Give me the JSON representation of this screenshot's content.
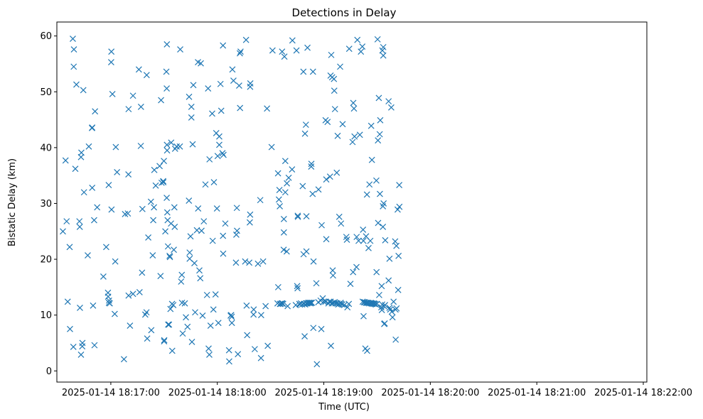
{
  "chart_data": {
    "type": "scatter",
    "title": "Detections in Delay",
    "xlabel": "Time (UTC)",
    "ylabel": "Bistatic Delay (km)",
    "marker": "x",
    "color": "#1f77b4",
    "grid": false,
    "x_ticks": [
      "2025-01-14 18:17:00",
      "2025-01-14 18:18:00",
      "2025-01-14 18:19:00",
      "2025-01-14 18:20:00",
      "2025-01-14 18:21:00",
      "2025-01-14 18:22:00"
    ],
    "x_tick_seconds": [
      60,
      120,
      180,
      240,
      300,
      360
    ],
    "xlim_seconds": [
      29.6,
      362.0
    ],
    "y_ticks": [
      "0",
      "10",
      "20",
      "30",
      "40",
      "50",
      "60"
    ],
    "y_tick_values": [
      0,
      10,
      20,
      30,
      40,
      50,
      60
    ],
    "ylim": [
      -2,
      62.5
    ],
    "x_reference": "2025-01-14 18:16:00",
    "points": [
      [
        33.0,
        25.0
      ],
      [
        35.1,
        26.8
      ],
      [
        34.5,
        37.7
      ],
      [
        35.7,
        12.4
      ],
      [
        36.8,
        22.2
      ],
      [
        37.0,
        7.5
      ],
      [
        38.6,
        59.5
      ],
      [
        38.9,
        4.3
      ],
      [
        39.2,
        57.6
      ],
      [
        39.1,
        54.5
      ],
      [
        40.0,
        36.2
      ],
      [
        40.6,
        51.3
      ],
      [
        42.3,
        26.8
      ],
      [
        42.5,
        25.8
      ],
      [
        42.6,
        11.3
      ],
      [
        43.2,
        38.3
      ],
      [
        43.4,
        39.1
      ],
      [
        43.2,
        2.9
      ],
      [
        44.0,
        5.0
      ],
      [
        43.9,
        4.4
      ],
      [
        44.5,
        50.3
      ],
      [
        44.9,
        32.0
      ],
      [
        47.0,
        20.7
      ],
      [
        47.6,
        40.2
      ],
      [
        49.5,
        32.8
      ],
      [
        49.4,
        43.5
      ],
      [
        49.5,
        43.6
      ],
      [
        50.0,
        11.7
      ],
      [
        50.6,
        27.0
      ],
      [
        50.8,
        4.6
      ],
      [
        51.1,
        46.5
      ],
      [
        52.3,
        29.3
      ],
      [
        55.8,
        16.9
      ],
      [
        57.4,
        22.2
      ],
      [
        58.4,
        14.0
      ],
      [
        58.5,
        13.3
      ],
      [
        58.8,
        33.3
      ],
      [
        58.9,
        12.2
      ],
      [
        59.0,
        12.6
      ],
      [
        59.4,
        12.1
      ],
      [
        60.3,
        57.2
      ],
      [
        60.2,
        55.3
      ],
      [
        60.4,
        28.9
      ],
      [
        60.9,
        49.6
      ],
      [
        62.2,
        10.2
      ],
      [
        62.5,
        19.6
      ],
      [
        62.8,
        40.1
      ],
      [
        63.5,
        35.6
      ],
      [
        67.4,
        2.1
      ],
      [
        68.0,
        28.1
      ],
      [
        69.6,
        28.2
      ],
      [
        69.9,
        35.2
      ],
      [
        70.0,
        13.5
      ],
      [
        70.0,
        46.9
      ],
      [
        70.8,
        8.1
      ],
      [
        72.5,
        49.3
      ],
      [
        72.5,
        13.8
      ],
      [
        75.8,
        54.0
      ],
      [
        76.2,
        14.1
      ],
      [
        77.0,
        47.3
      ],
      [
        76.9,
        40.3
      ],
      [
        77.6,
        17.6
      ],
      [
        77.8,
        29.0
      ],
      [
        79.4,
        10.1
      ],
      [
        80.2,
        53.0
      ],
      [
        80.5,
        5.8
      ],
      [
        80.1,
        10.5
      ],
      [
        81.1,
        23.9
      ],
      [
        82.8,
        7.3
      ],
      [
        82.6,
        30.3
      ],
      [
        83.6,
        20.7
      ],
      [
        83.9,
        27.0
      ],
      [
        84.3,
        29.3
      ],
      [
        84.5,
        36.0
      ],
      [
        85.3,
        33.2
      ],
      [
        87.5,
        36.7
      ],
      [
        88.0,
        17.0
      ],
      [
        88.3,
        48.5
      ],
      [
        88.6,
        33.7
      ],
      [
        89.5,
        34.0
      ],
      [
        89.6,
        33.8
      ],
      [
        89.9,
        37.6
      ],
      [
        90.1,
        5.5
      ],
      [
        90.0,
        5.3
      ],
      [
        90.7,
        25.0
      ],
      [
        91.3,
        53.6
      ],
      [
        91.5,
        50.6
      ],
      [
        91.6,
        58.5
      ],
      [
        91.6,
        40.5
      ],
      [
        91.7,
        39.5
      ],
      [
        91.5,
        31.0
      ],
      [
        91.8,
        28.4
      ],
      [
        92.0,
        27.0
      ],
      [
        92.2,
        22.3
      ],
      [
        92.3,
        8.3
      ],
      [
        92.8,
        8.3
      ],
      [
        93.1,
        20.6
      ],
      [
        93.3,
        20.4
      ],
      [
        93.6,
        11.1
      ],
      [
        93.9,
        26.4
      ],
      [
        94.0,
        40.9
      ],
      [
        94.5,
        12.0
      ],
      [
        94.6,
        3.6
      ],
      [
        95.2,
        11.8
      ],
      [
        95.5,
        21.7
      ],
      [
        95.8,
        29.3
      ],
      [
        96.0,
        25.8
      ],
      [
        96.2,
        39.8
      ],
      [
        97.1,
        40.2
      ],
      [
        98.9,
        40.2
      ],
      [
        99.1,
        57.6
      ],
      [
        99.6,
        16.0
      ],
      [
        100.0,
        17.2
      ],
      [
        100.1,
        12.2
      ],
      [
        100.5,
        6.7
      ],
      [
        101.7,
        12.1
      ],
      [
        102.3,
        9.6
      ],
      [
        103.2,
        7.9
      ],
      [
        104.0,
        30.5
      ],
      [
        104.1,
        49.1
      ],
      [
        104.4,
        21.2
      ],
      [
        104.4,
        20.1
      ],
      [
        104.9,
        24.1
      ],
      [
        105.4,
        47.3
      ],
      [
        105.4,
        45.4
      ],
      [
        105.7,
        5.2
      ],
      [
        106.1,
        40.6
      ],
      [
        106.5,
        51.2
      ],
      [
        107.5,
        10.5
      ],
      [
        107.1,
        19.3
      ],
      [
        108.5,
        25.2
      ],
      [
        109.1,
        55.3
      ],
      [
        109.2,
        29.1
      ],
      [
        109.9,
        18.0
      ],
      [
        110.4,
        16.6
      ],
      [
        110.7,
        55.1
      ],
      [
        111.1,
        25.1
      ],
      [
        111.7,
        9.9
      ],
      [
        112.4,
        26.8
      ],
      [
        113.3,
        33.4
      ],
      [
        114.2,
        13.6
      ],
      [
        114.8,
        50.6
      ],
      [
        115.1,
        4.0
      ],
      [
        115.5,
        2.9
      ],
      [
        115.6,
        37.9
      ],
      [
        116.2,
        8.1
      ],
      [
        117.4,
        23.3
      ],
      [
        117.1,
        46.1
      ],
      [
        117.8,
        11.0
      ],
      [
        118.1,
        33.8
      ],
      [
        119.0,
        13.7
      ],
      [
        119.4,
        42.6
      ],
      [
        119.8,
        29.1
      ],
      [
        120.2,
        38.5
      ],
      [
        120.6,
        8.6
      ],
      [
        121.1,
        40.5
      ],
      [
        121.1,
        42.0
      ],
      [
        121.8,
        51.4
      ],
      [
        122.2,
        46.6
      ],
      [
        122.9,
        39.0
      ],
      [
        123.5,
        38.7
      ],
      [
        123.2,
        58.3
      ],
      [
        123.2,
        24.2
      ],
      [
        123.3,
        21.0
      ],
      [
        124.5,
        26.4
      ],
      [
        126.7,
        1.7
      ],
      [
        126.6,
        3.7
      ],
      [
        127.5,
        9.9
      ],
      [
        127.8,
        10.0
      ],
      [
        128.2,
        8.6
      ],
      [
        128.5,
        54.0
      ],
      [
        128.1,
        9.7
      ],
      [
        129.1,
        52.0
      ],
      [
        130.7,
        24.4
      ],
      [
        131.1,
        25.1
      ],
      [
        130.5,
        19.4
      ],
      [
        131.0,
        29.2
      ],
      [
        131.6,
        3.0
      ],
      [
        132.3,
        51.1
      ],
      [
        132.7,
        56.9
      ],
      [
        133.1,
        57.2
      ],
      [
        132.8,
        47.1
      ],
      [
        136.2,
        59.3
      ],
      [
        136.8,
        6.4
      ],
      [
        136.5,
        11.7
      ],
      [
        138.0,
        19.4
      ],
      [
        135.7,
        19.6
      ],
      [
        138.3,
        26.6
      ],
      [
        138.5,
        28.0
      ],
      [
        138.6,
        51.5
      ],
      [
        138.5,
        50.9
      ],
      [
        140.4,
        10.1
      ],
      [
        140.5,
        11.0
      ],
      [
        141.1,
        3.9
      ],
      [
        142.9,
        19.2
      ],
      [
        144.2,
        30.6
      ],
      [
        144.6,
        2.3
      ],
      [
        144.7,
        10.0
      ],
      [
        145.8,
        19.6
      ],
      [
        147.2,
        11.6
      ],
      [
        148.0,
        47.0
      ],
      [
        148.4,
        4.5
      ],
      [
        150.6,
        40.1
      ],
      [
        151.1,
        57.4
      ],
      [
        154.2,
        35.4
      ],
      [
        153.9,
        12.1
      ],
      [
        154.3,
        15.0
      ],
      [
        154.7,
        30.7
      ],
      [
        155.0,
        32.4
      ],
      [
        155.2,
        29.5
      ],
      [
        155.3,
        12.0
      ],
      [
        155.6,
        12.0
      ],
      [
        156.3,
        12.1
      ],
      [
        156.5,
        57.2
      ],
      [
        156.6,
        12.1
      ],
      [
        157.1,
        12.0
      ],
      [
        157.4,
        21.7
      ],
      [
        157.5,
        24.8
      ],
      [
        157.5,
        27.2
      ],
      [
        157.8,
        56.3
      ],
      [
        158.3,
        37.6
      ],
      [
        158.3,
        32.0
      ],
      [
        159.1,
        21.4
      ],
      [
        159.2,
        33.6
      ],
      [
        159.6,
        11.6
      ],
      [
        160.2,
        34.6
      ],
      [
        162.3,
        59.2
      ],
      [
        162.1,
        36.1
      ],
      [
        164.2,
        11.8
      ],
      [
        164.6,
        57.4
      ],
      [
        165.0,
        15.2
      ],
      [
        165.2,
        14.8
      ],
      [
        165.3,
        27.8
      ],
      [
        165.4,
        27.6
      ],
      [
        166.2,
        12.0
      ],
      [
        166.5,
        11.9
      ],
      [
        167.1,
        12.1
      ],
      [
        167.8,
        11.9
      ],
      [
        168.1,
        33.1
      ],
      [
        168.5,
        53.6
      ],
      [
        168.6,
        20.9
      ],
      [
        168.8,
        12.0
      ],
      [
        169.2,
        6.2
      ],
      [
        169.4,
        42.5
      ],
      [
        169.5,
        11.9
      ],
      [
        169.9,
        44.1
      ],
      [
        170.2,
        21.4
      ],
      [
        170.2,
        27.7
      ],
      [
        170.3,
        12.1
      ],
      [
        170.8,
        57.9
      ],
      [
        170.7,
        12.1
      ],
      [
        171.2,
        12.2
      ],
      [
        171.7,
        12.2
      ],
      [
        172.3,
        12.2
      ],
      [
        172.5,
        12.1
      ],
      [
        172.9,
        36.6
      ],
      [
        172.9,
        12.2
      ],
      [
        173.0,
        37.1
      ],
      [
        173.3,
        12.2
      ],
      [
        173.7,
        31.7
      ],
      [
        173.9,
        53.6
      ],
      [
        174.1,
        7.7
      ],
      [
        174.2,
        19.6
      ],
      [
        175.8,
        15.7
      ],
      [
        176.1,
        1.2
      ],
      [
        176.9,
        12.3
      ],
      [
        177.0,
        32.5
      ],
      [
        178.2,
        12.6
      ],
      [
        178.6,
        7.5
      ],
      [
        178.8,
        26.1
      ],
      [
        179.4,
        13.0
      ],
      [
        179.9,
        12.4
      ],
      [
        180.9,
        12.4
      ],
      [
        181.4,
        34.3
      ],
      [
        181.0,
        44.9
      ],
      [
        181.4,
        23.6
      ],
      [
        182.1,
        44.6
      ],
      [
        182.6,
        12.1
      ],
      [
        183.1,
        12.4
      ],
      [
        183.5,
        34.8
      ],
      [
        183.9,
        12.4
      ],
      [
        184.2,
        56.6
      ],
      [
        183.8,
        52.9
      ],
      [
        184.0,
        4.5
      ],
      [
        184.5,
        12.1
      ],
      [
        184.7,
        52.6
      ],
      [
        185.0,
        18.0
      ],
      [
        185.2,
        17.1
      ],
      [
        185.3,
        12.2
      ],
      [
        185.7,
        52.3
      ],
      [
        185.9,
        50.2
      ],
      [
        186.1,
        12.3
      ],
      [
        186.3,
        46.9
      ],
      [
        186.6,
        12.1
      ],
      [
        187.3,
        35.5
      ],
      [
        187.6,
        12.1
      ],
      [
        187.8,
        42.1
      ],
      [
        188.1,
        11.9
      ],
      [
        188.6,
        12.0
      ],
      [
        188.7,
        27.6
      ],
      [
        189.2,
        54.5
      ],
      [
        189.5,
        12.2
      ],
      [
        189.7,
        26.4
      ],
      [
        189.8,
        12.0
      ],
      [
        190.4,
        11.9
      ],
      [
        190.6,
        44.2
      ],
      [
        191.5,
        11.8
      ],
      [
        192.7,
        24.0
      ],
      [
        193.0,
        23.5
      ],
      [
        193.3,
        11.4
      ],
      [
        194.3,
        57.7
      ],
      [
        194.1,
        12.0
      ],
      [
        195.0,
        15.6
      ],
      [
        196.2,
        41.0
      ],
      [
        196.5,
        17.7
      ],
      [
        196.6,
        48.0
      ],
      [
        197.0,
        47.0
      ],
      [
        197.3,
        42.0
      ],
      [
        198.4,
        18.6
      ],
      [
        198.5,
        24.0
      ],
      [
        198.9,
        59.3
      ],
      [
        199.6,
        23.3
      ],
      [
        200.3,
        42.3
      ],
      [
        200.9,
        57.2
      ],
      [
        201.7,
        58.1
      ],
      [
        201.9,
        12.4
      ],
      [
        202.3,
        23.3
      ],
      [
        202.1,
        25.3
      ],
      [
        202.4,
        9.8
      ],
      [
        202.6,
        12.3
      ],
      [
        203.1,
        12.3
      ],
      [
        203.4,
        4.0
      ],
      [
        203.7,
        12.2
      ],
      [
        203.8,
        24.1
      ],
      [
        204.1,
        12.2
      ],
      [
        204.3,
        31.6
      ],
      [
        204.4,
        3.6
      ],
      [
        204.6,
        12.2
      ],
      [
        205.1,
        12.2
      ],
      [
        205.2,
        22.0
      ],
      [
        205.6,
        12.1
      ],
      [
        205.7,
        33.4
      ],
      [
        206.2,
        23.3
      ],
      [
        206.4,
        12.2
      ],
      [
        206.6,
        12.1
      ],
      [
        206.7,
        43.9
      ],
      [
        207.1,
        12.1
      ],
      [
        207.1,
        37.8
      ],
      [
        207.5,
        12.0
      ],
      [
        208.1,
        12.1
      ],
      [
        208.5,
        12.0
      ],
      [
        208.8,
        12.0
      ],
      [
        209.3,
        11.9
      ],
      [
        209.7,
        17.7
      ],
      [
        209.6,
        34.1
      ],
      [
        209.9,
        12.0
      ],
      [
        210.5,
        41.3
      ],
      [
        210.3,
        59.4
      ],
      [
        210.6,
        26.5
      ],
      [
        211.2,
        13.6
      ],
      [
        211.0,
        48.9
      ],
      [
        211.5,
        42.4
      ],
      [
        211.8,
        44.9
      ],
      [
        211.6,
        31.7
      ],
      [
        212.4,
        11.4
      ],
      [
        212.6,
        15.2
      ],
      [
        212.7,
        10.9
      ],
      [
        212.9,
        11.9
      ],
      [
        213.0,
        57.4
      ],
      [
        213.3,
        25.8
      ],
      [
        213.3,
        29.5
      ],
      [
        213.5,
        56.5
      ],
      [
        213.5,
        58.0
      ],
      [
        213.7,
        30.0
      ],
      [
        213.9,
        11.6
      ],
      [
        214.0,
        8.4
      ],
      [
        214.3,
        8.5
      ],
      [
        214.5,
        11.8
      ],
      [
        214.6,
        23.4
      ],
      [
        216.5,
        48.3
      ],
      [
        216.5,
        16.2
      ],
      [
        217.0,
        11.3
      ],
      [
        217.0,
        20.1
      ],
      [
        217.4,
        11.0
      ],
      [
        218.0,
        47.2
      ],
      [
        218.3,
        10.6
      ],
      [
        218.7,
        9.6
      ],
      [
        219.3,
        12.4
      ],
      [
        220.2,
        23.2
      ],
      [
        220.4,
        11.0
      ],
      [
        220.5,
        5.6
      ],
      [
        220.9,
        22.4
      ],
      [
        221.0,
        11.2
      ],
      [
        221.6,
        28.9
      ],
      [
        221.9,
        14.5
      ],
      [
        222.1,
        20.6
      ],
      [
        222.5,
        33.3
      ],
      [
        222.6,
        29.4
      ]
    ]
  }
}
